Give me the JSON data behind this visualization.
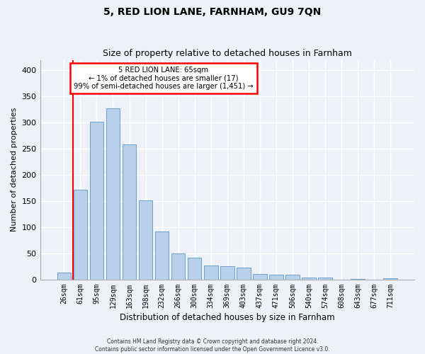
{
  "title": "5, RED LION LANE, FARNHAM, GU9 7QN",
  "subtitle": "Size of property relative to detached houses in Farnham",
  "xlabel": "Distribution of detached houses by size in Farnham",
  "ylabel": "Number of detached properties",
  "bar_labels": [
    "26sqm",
    "61sqm",
    "95sqm",
    "129sqm",
    "163sqm",
    "198sqm",
    "232sqm",
    "266sqm",
    "300sqm",
    "334sqm",
    "369sqm",
    "403sqm",
    "437sqm",
    "471sqm",
    "506sqm",
    "540sqm",
    "574sqm",
    "608sqm",
    "643sqm",
    "677sqm",
    "711sqm"
  ],
  "bar_values": [
    14,
    172,
    302,
    327,
    259,
    152,
    92,
    50,
    42,
    27,
    26,
    23,
    11,
    10,
    10,
    4,
    4,
    0,
    1,
    0,
    2
  ],
  "bar_color": "#b8d0ea",
  "bar_edge_color": "#6aa0cc",
  "annotation_text_line1": "5 RED LION LANE: 65sqm",
  "annotation_text_line2": "← 1% of detached houses are smaller (17)",
  "annotation_text_line3": "99% of semi-detached houses are larger (1,451) →",
  "annotation_box_color": "white",
  "annotation_box_edge_color": "red",
  "vertical_line_x": 0.55,
  "vertical_line_color": "red",
  "ylim": [
    0,
    420
  ],
  "yticks": [
    0,
    50,
    100,
    150,
    200,
    250,
    300,
    350,
    400
  ],
  "footer_line1": "Contains HM Land Registry data © Crown copyright and database right 2024.",
  "footer_line2": "Contains public sector information licensed under the Open Government Licence v3.0.",
  "background_color": "#eef2f8",
  "plot_bg_color": "#eef2f8",
  "grid_color": "white",
  "title_fontsize": 10,
  "subtitle_fontsize": 9,
  "ylabel_fontsize": 8,
  "xlabel_fontsize": 8.5
}
